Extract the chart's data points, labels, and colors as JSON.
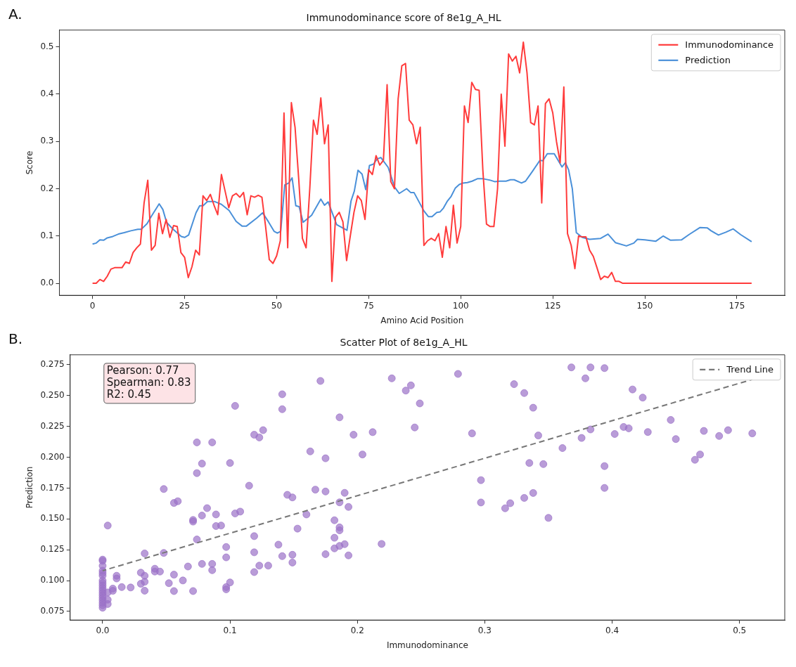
{
  "chart_data": [
    {
      "type": "line",
      "title": "Immunodominance score of 8e1g_A_HL",
      "xlabel": "Amino Acid Position",
      "ylabel": "Score",
      "annotations": [
        "A."
      ],
      "xlim": [
        -9,
        188
      ],
      "xticks": [
        0,
        25,
        50,
        75,
        100,
        125,
        150,
        175
      ],
      "ylim": [
        -0.0255,
        0.5355
      ],
      "yticks": [
        {
          "value": 0,
          "label": "0.0"
        },
        {
          "value": 0.1,
          "label": "0.1"
        },
        {
          "value": 0.2,
          "label": "0.2"
        },
        {
          "value": 0.3,
          "label": "0.3"
        },
        {
          "value": 0.4,
          "label": "0.4"
        },
        {
          "value": 0.5,
          "label": "0.5"
        }
      ],
      "grid": false,
      "legend": "top right",
      "series": [
        {
          "name": "Immunodominance",
          "color": "#ff3b3b",
          "x": [
            0,
            1,
            2,
            3,
            4,
            5,
            6,
            7,
            8,
            9,
            10,
            11,
            12,
            13,
            14,
            15,
            16,
            17,
            18,
            19,
            20,
            21,
            22,
            23,
            24,
            25,
            26,
            27,
            28,
            29,
            30,
            31,
            32,
            33,
            34,
            35,
            36,
            37,
            38,
            39,
            40,
            41,
            42,
            43,
            44,
            45,
            46,
            47,
            48,
            49,
            50,
            51,
            52,
            53,
            54,
            55,
            56,
            57,
            58,
            59,
            60,
            61,
            62,
            63,
            64,
            65,
            66,
            67,
            68,
            69,
            70,
            71,
            72,
            73,
            74,
            75,
            76,
            77,
            78,
            79,
            80,
            81,
            82,
            83,
            84,
            85,
            86,
            87,
            88,
            89,
            90,
            91,
            92,
            93,
            94,
            95,
            96,
            97,
            98,
            99,
            100,
            101,
            102,
            103,
            104,
            105,
            106,
            107,
            108,
            109,
            110,
            111,
            112,
            113,
            114,
            115,
            116,
            117,
            118,
            119,
            120,
            121,
            122,
            123,
            124,
            125,
            126,
            127,
            128,
            129,
            130,
            131,
            132,
            133,
            134,
            135,
            136,
            137,
            138,
            139,
            140,
            141,
            142,
            143,
            144,
            179
          ],
          "values": [
            0,
            0,
            0.008,
            0.004,
            0.015,
            0.03,
            0.033,
            0.033,
            0.033,
            0.045,
            0.042,
            0.065,
            0.075,
            0.083,
            0.17,
            0.218,
            0.07,
            0.08,
            0.148,
            0.105,
            0.135,
            0.097,
            0.122,
            0.12,
            0.065,
            0.055,
            0.012,
            0.035,
            0.07,
            0.06,
            0.185,
            0.175,
            0.188,
            0.165,
            0.145,
            0.23,
            0.195,
            0.16,
            0.185,
            0.19,
            0.182,
            0.192,
            0.145,
            0.185,
            0.182,
            0.186,
            0.182,
            0.12,
            0.05,
            0.042,
            0.058,
            0.09,
            0.36,
            0.075,
            0.382,
            0.33,
            0.22,
            0.095,
            0.075,
            0.2,
            0.345,
            0.315,
            0.392,
            0.295,
            0.335,
            0.004,
            0.14,
            0.15,
            0.13,
            0.048,
            0.1,
            0.15,
            0.185,
            0.175,
            0.135,
            0.24,
            0.23,
            0.27,
            0.25,
            0.26,
            0.42,
            0.215,
            0.2,
            0.39,
            0.46,
            0.465,
            0.345,
            0.335,
            0.295,
            0.33,
            0.08,
            0.09,
            0.095,
            0.09,
            0.105,
            0.055,
            0.12,
            0.075,
            0.165,
            0.085,
            0.12,
            0.375,
            0.34,
            0.425,
            0.41,
            0.408,
            0.24,
            0.125,
            0.12,
            0.12,
            0.2,
            0.4,
            0.29,
            0.485,
            0.47,
            0.48,
            0.445,
            0.51,
            0.445,
            0.34,
            0.335,
            0.375,
            0.17,
            0.38,
            0.39,
            0.36,
            0.3,
            0.255,
            0.415,
            0.105,
            0.08,
            0.031,
            0.1,
            0.098,
            0.098,
            0.07,
            0.057,
            0.033,
            0.008,
            0.015,
            0.012,
            0.023,
            0.004,
            0.004,
            0,
            0
          ]
        },
        {
          "name": "Prediction",
          "color": "#4a90d9",
          "x": [
            0,
            1,
            2,
            3,
            4,
            5.5,
            7,
            8.6,
            10.4,
            12.3,
            13.2,
            14.8,
            16,
            18.1,
            19.1,
            20.1,
            21.9,
            24.1,
            25,
            26.1,
            28.1,
            29.1,
            30,
            31.2,
            33.1,
            35,
            37.1,
            39,
            40.6,
            41.8,
            44.6,
            46.2,
            47.7,
            49.3,
            50.2,
            51.1,
            52.2,
            53.3,
            54.2,
            55.2,
            56.1,
            57.2,
            59.5,
            62,
            63,
            64,
            66.3,
            69.1,
            70.2,
            71.1,
            72.1,
            73.2,
            74.2,
            75.2,
            76.3,
            77.3,
            78.3,
            80.3,
            82,
            83.3,
            85.3,
            86.4,
            87.3,
            90,
            91.2,
            92.2,
            93.5,
            94.4,
            95.3,
            96.3,
            97.4,
            98.5,
            99.6,
            100.6,
            101.8,
            103.1,
            104.5,
            106.1,
            108,
            109.2,
            110.6,
            112.3,
            113.5,
            114.5,
            116.5,
            117.6,
            119.5,
            121.5,
            122.3,
            123.5,
            125.4,
            127.5,
            128.4,
            129.3,
            130.3,
            131.4,
            133,
            135,
            138,
            140,
            142,
            145,
            147,
            148,
            150,
            153,
            155,
            157,
            160,
            162,
            165,
            167,
            168,
            170,
            172,
            174,
            176,
            179
          ],
          "values": [
            0.083,
            0.085,
            0.092,
            0.091,
            0.096,
            0.099,
            0.104,
            0.107,
            0.111,
            0.114,
            0.114,
            0.126,
            0.142,
            0.168,
            0.156,
            0.129,
            0.114,
            0.099,
            0.097,
            0.102,
            0.149,
            0.164,
            0.164,
            0.173,
            0.173,
            0.167,
            0.154,
            0.131,
            0.121,
            0.121,
            0.138,
            0.149,
            0.131,
            0.11,
            0.106,
            0.11,
            0.208,
            0.212,
            0.223,
            0.164,
            0.162,
            0.129,
            0.144,
            0.178,
            0.165,
            0.172,
            0.124,
            0.112,
            0.174,
            0.195,
            0.239,
            0.231,
            0.198,
            0.249,
            0.252,
            0.263,
            0.266,
            0.245,
            0.204,
            0.19,
            0.2,
            0.192,
            0.192,
            0.153,
            0.141,
            0.141,
            0.15,
            0.151,
            0.159,
            0.173,
            0.184,
            0.201,
            0.209,
            0.212,
            0.213,
            0.216,
            0.221,
            0.221,
            0.218,
            0.215,
            0.216,
            0.216,
            0.219,
            0.219,
            0.212,
            0.216,
            0.237,
            0.26,
            0.259,
            0.274,
            0.274,
            0.246,
            0.255,
            0.24,
            0.2,
            0.107,
            0.097,
            0.093,
            0.095,
            0.104,
            0.086,
            0.079,
            0.085,
            0.093,
            0.092,
            0.089,
            0.1,
            0.091,
            0.092,
            0.103,
            0.118,
            0.117,
            0.111,
            0.102,
            0.108,
            0.115,
            0.103,
            0.088
          ]
        }
      ]
    },
    {
      "type": "scatter",
      "title": "Scatter Plot of 8e1g_A_HL",
      "xlabel": "Immunodominance",
      "ylabel": "Prediction",
      "annotations": [
        "B.",
        "Pearson: 0.77",
        "Spearman: 0.83",
        "R2: 0.45"
      ],
      "xlim": [
        -0.0255,
        0.5355
      ],
      "xticks": [
        {
          "value": 0,
          "label": "0.0"
        },
        {
          "value": 0.1,
          "label": "0.1"
        },
        {
          "value": 0.2,
          "label": "0.2"
        },
        {
          "value": 0.3,
          "label": "0.3"
        },
        {
          "value": 0.4,
          "label": "0.4"
        },
        {
          "value": 0.5,
          "label": "0.5"
        }
      ],
      "ylim": [
        0.068,
        0.283
      ],
      "yticks": [
        {
          "value": 0.075,
          "label": "0.075"
        },
        {
          "value": 0.1,
          "label": "0.100"
        },
        {
          "value": 0.125,
          "label": "0.125"
        },
        {
          "value": 0.15,
          "label": "0.150"
        },
        {
          "value": 0.175,
          "label": "0.175"
        },
        {
          "value": 0.2,
          "label": "0.200"
        },
        {
          "value": 0.225,
          "label": "0.225"
        },
        {
          "value": 0.25,
          "label": "0.250"
        },
        {
          "value": 0.275,
          "label": "0.275"
        }
      ],
      "grid": false,
      "legend": "top right",
      "series": [
        {
          "color": "#9b72c8",
          "marker": "circle",
          "x": [
            0,
            0,
            0,
            0,
            0,
            0,
            0,
            0,
            0,
            0,
            0,
            0,
            0,
            0,
            0,
            0,
            0,
            0,
            0.004,
            0.004,
            0.004,
            0.004,
            0.008,
            0.008,
            0.011,
            0.011,
            0.015,
            0.022,
            0.03,
            0.03,
            0.033,
            0.033,
            0.033,
            0.033,
            0.041,
            0.041,
            0.045,
            0.048,
            0.048,
            0.052,
            0.056,
            0.056,
            0.056,
            0.059,
            0.063,
            0.067,
            0.071,
            0.071,
            0.071,
            0.074,
            0.074,
            0.074,
            0.078,
            0.078,
            0.078,
            0.082,
            0.086,
            0.086,
            0.086,
            0.089,
            0.089,
            0.093,
            0.097,
            0.097,
            0.097,
            0.097,
            0.1,
            0.1,
            0.104,
            0.104,
            0.108,
            0.115,
            0.119,
            0.119,
            0.119,
            0.119,
            0.123,
            0.123,
            0.126,
            0.13,
            0.138,
            0.141,
            0.141,
            0.141,
            0.145,
            0.149,
            0.149,
            0.149,
            0.153,
            0.16,
            0.163,
            0.167,
            0.171,
            0.175,
            0.175,
            0.175,
            0.182,
            0.182,
            0.182,
            0.186,
            0.186,
            0.186,
            0.186,
            0.186,
            0.19,
            0.19,
            0.193,
            0.193,
            0.197,
            0.204,
            0.212,
            0.219,
            0.227,
            0.238,
            0.242,
            0.245,
            0.249,
            0.279,
            0.29,
            0.297,
            0.297,
            0.316,
            0.32,
            0.323,
            0.331,
            0.331,
            0.335,
            0.338,
            0.338,
            0.342,
            0.346,
            0.35,
            0.361,
            0.368,
            0.376,
            0.379,
            0.383,
            0.383,
            0.394,
            0.394,
            0.394,
            0.402,
            0.409,
            0.413,
            0.416,
            0.424,
            0.428,
            0.446,
            0.45,
            0.465,
            0.469,
            0.472,
            0.484,
            0.491,
            0.51
          ],
          "values": [
            0.117,
            0.116,
            0.112,
            0.108,
            0.106,
            0.104,
            0.1,
            0.098,
            0.096,
            0.094,
            0.092,
            0.09,
            0.088,
            0.086,
            0.084,
            0.082,
            0.08,
            0.078,
            0.1446,
            0.0904,
            0.0845,
            0.081,
            0.0935,
            0.0917,
            0.1039,
            0.1017,
            0.0947,
            0.0944,
            0.1064,
            0.0974,
            0.1039,
            0.099,
            0.0918,
            0.122,
            0.1096,
            0.1073,
            0.1073,
            0.1742,
            0.1224,
            0.0979,
            0.1629,
            0.1048,
            0.0915,
            0.1643,
            0.1001,
            0.1114,
            0.1491,
            0.1478,
            0.0915,
            0.212,
            0.1871,
            0.1333,
            0.1948,
            0.1527,
            0.1135,
            0.1587,
            0.212,
            0.1135,
            0.1084,
            0.1536,
            0.1442,
            0.1446,
            0.1272,
            0.1188,
            0.0947,
            0.0929,
            0.1953,
            0.0985,
            0.2416,
            0.1544,
            0.1559,
            0.1769,
            0.2182,
            0.136,
            0.1229,
            0.1069,
            0.216,
            0.1121,
            0.2219,
            0.1121,
            0.1291,
            0.251,
            0.2389,
            0.1198,
            0.1695,
            0.1674,
            0.1209,
            0.1146,
            0.1421,
            0.1536,
            0.2047,
            0.1737,
            0.2618,
            0.1991,
            0.1722,
            0.1214,
            0.1489,
            0.1347,
            0.1261,
            0.2323,
            0.1634,
            0.1431,
            0.1407,
            0.1281,
            0.1711,
            0.1295,
            0.1597,
            0.1204,
            0.2182,
            0.2022,
            0.2203,
            0.1297,
            0.2639,
            0.254,
            0.2582,
            0.2241,
            0.2436,
            0.2675,
            0.2193,
            0.1814,
            0.1633,
            0.1586,
            0.1627,
            0.2592,
            0.252,
            0.167,
            0.1953,
            0.2401,
            0.171,
            0.2176,
            0.1944,
            0.1508,
            0.2074,
            0.2728,
            0.2156,
            0.2639,
            0.2728,
            0.2225,
            0.2722,
            0.1928,
            0.1751,
            0.2188,
            0.2245,
            0.2234,
            0.2549,
            0.2483,
            0.2204,
            0.2302,
            0.2147,
            0.1979,
            0.2022,
            0.2213,
            0.2172,
            0.2219,
            0.2193
          ]
        },
        {
          "type": "line",
          "name": "Trend Line",
          "color": "#777777",
          "line_style": "dashed",
          "x": [
            0,
            0.51
          ],
          "values": [
            0.108,
            0.263
          ]
        }
      ]
    }
  ]
}
